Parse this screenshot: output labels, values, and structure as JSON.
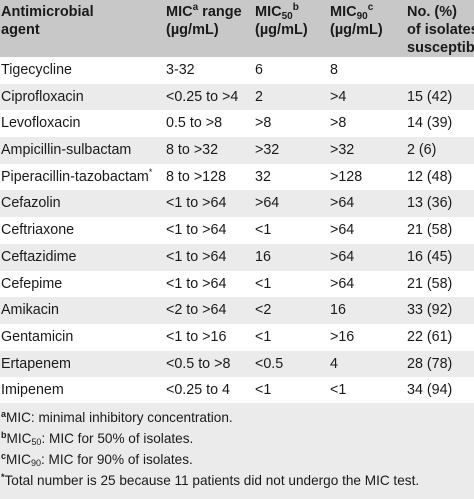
{
  "table": {
    "headers": {
      "col1_line1": "Antimicrobial",
      "col1_line2": "agent",
      "col2_main": "MIC",
      "col2_sup": "a",
      "col2_tail": " range",
      "col2_line2": "(µg/mL)",
      "col3_main": "MIC",
      "col3_sub": "50",
      "col3_sup": "b",
      "col3_line2": "(µg/mL)",
      "col4_main": "MIC",
      "col4_sub": "90",
      "col4_sup": "c",
      "col4_line2": "(µg/mL)",
      "col5_line1": "No. (%)",
      "col5_line2": "of isolates",
      "col5_line3": "susceptible"
    },
    "rows": [
      {
        "agent": "Tigecycline",
        "agent_sup": "",
        "range": "3-32",
        "mic50": "6",
        "mic90": "8",
        "susceptible": ""
      },
      {
        "agent": "Ciprofloxacin",
        "agent_sup": "",
        "range": "<0.25 to >4",
        "mic50": "2",
        "mic90": ">4",
        "susceptible": "15 (42)"
      },
      {
        "agent": "Levofloxacin",
        "agent_sup": "",
        "range": "0.5 to >8",
        "mic50": ">8",
        "mic90": ">8",
        "susceptible": "14 (39)"
      },
      {
        "agent": "Ampicillin-sulbactam",
        "agent_sup": "",
        "range": "8 to >32",
        "mic50": ">32",
        "mic90": ">32",
        "susceptible": "2 (6)"
      },
      {
        "agent": "Piperacillin-tazobactam",
        "agent_sup": "*",
        "range": "8 to >128",
        "mic50": "32",
        "mic90": ">128",
        "susceptible": "12 (48)"
      },
      {
        "agent": "Cefazolin",
        "agent_sup": "",
        "range": "<1 to >64",
        "mic50": ">64",
        "mic90": ">64",
        "susceptible": "13 (36)"
      },
      {
        "agent": "Ceftriaxone",
        "agent_sup": "",
        "range": "<1 to >64",
        "mic50": "<1",
        "mic90": ">64",
        "susceptible": "21 (58)"
      },
      {
        "agent": "Ceftazidime",
        "agent_sup": "",
        "range": "<1 to >64",
        "mic50": "16",
        "mic90": ">64",
        "susceptible": "16 (45)"
      },
      {
        "agent": "Cefepime",
        "agent_sup": "",
        "range": "<1 to >64",
        "mic50": "<1",
        "mic90": ">64",
        "susceptible": "21 (58)"
      },
      {
        "agent": "Amikacin",
        "agent_sup": "",
        "range": "<2 to >64",
        "mic50": "<2",
        "mic90": "16",
        "susceptible": "33 (92)"
      },
      {
        "agent": "Gentamicin",
        "agent_sup": "",
        "range": "<1 to >16",
        "mic50": "<1",
        "mic90": ">16",
        "susceptible": "22 (61)"
      },
      {
        "agent": "Ertapenem",
        "agent_sup": "",
        "range": "<0.5 to >8",
        "mic50": "<0.5",
        "mic90": "4",
        "susceptible": "28 (78)"
      },
      {
        "agent": "Imipenem",
        "agent_sup": "",
        "range": "<0.25 to 4",
        "mic50": "<1",
        "mic90": "<1",
        "susceptible": "34 (94)"
      }
    ]
  },
  "footnotes": {
    "a_mark": "a",
    "a_text": "MIC: minimal inhibitory concentration.",
    "b_mark": "b",
    "b_main": "MIC",
    "b_sub": "50",
    "b_text": ": MIC for 50% of isolates.",
    "c_mark": "c",
    "c_main": "MIC",
    "c_sub": "90",
    "c_text": ": MIC for 90% of isolates.",
    "star_mark": "*",
    "star_text": "Total number is 25 because 11 patients did not undergo the MIC test."
  },
  "colors": {
    "header_bg": "#c8c8c8",
    "alt_row_bg": "#ebebeb",
    "text": "#1a1a1a"
  }
}
